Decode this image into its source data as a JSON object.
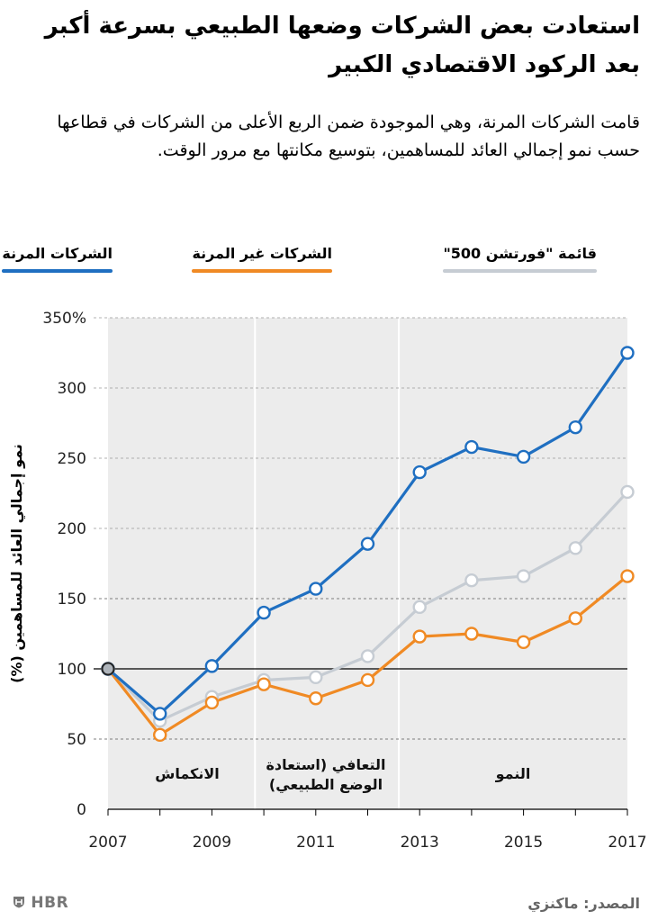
{
  "title": "استعادت بعض الشركات وضعها الطبيعي بسرعة أكبر بعد الركود الاقتصادي الكبير",
  "subtitle": "قامت الشركات المرنة، وهي الموجودة ضمن الربع الأعلى من الشركات في قطاعها حسب نمو إجمالي العائد للمساهمين، بتوسيع مكانتها مع مرور الوقت.",
  "source": "المصدر: ماكنزي",
  "logo": "HBR",
  "colors": {
    "resilient": "#1f6fc1",
    "nonresilient": "#f08a24",
    "fortune": "#c6ccd3",
    "shade": "#ececec"
  },
  "chart_data": {
    "type": "line",
    "title": "استعادت بعض الشركات وضعها الطبيعي بسرعة أكبر بعد الركود الاقتصادي الكبير",
    "ylabel": "نمو إجمالي العائد للمساهمين (%)",
    "xlabel": "",
    "x": [
      2007,
      2008,
      2009,
      2010,
      2011,
      2012,
      2013,
      2014,
      2015,
      2016,
      2017
    ],
    "xticks": [
      "2007",
      "2009",
      "2011",
      "2013",
      "2015",
      "2017"
    ],
    "yticks": [
      "0",
      "50",
      "100",
      "150",
      "200",
      "250",
      "300",
      "350%"
    ],
    "ylim": [
      0,
      350
    ],
    "grid": true,
    "legend": "top",
    "series": [
      {
        "name": "الشركات المرنة",
        "color": "#1f6fc1",
        "values": [
          100,
          68,
          102,
          140,
          157,
          189,
          240,
          258,
          251,
          272,
          325
        ]
      },
      {
        "name": "الشركات غير المرنة",
        "color": "#f08a24",
        "values": [
          100,
          53,
          76,
          89,
          79,
          92,
          123,
          125,
          119,
          136,
          166
        ]
      },
      {
        "name": "قائمة \"فورتشن 500\"",
        "color": "#c6ccd3",
        "values": [
          100,
          63,
          80,
          92,
          94,
          109,
          144,
          163,
          166,
          186,
          226
        ]
      }
    ],
    "phases": [
      {
        "label": "الانكماش",
        "from": 2007,
        "to": 2009.83
      },
      {
        "label": "التعافي (استعادة الوضع الطبيعي)",
        "from": 2009.83,
        "to": 2012.6
      },
      {
        "label": "النمو",
        "from": 2012.6,
        "to": 2017
      }
    ]
  }
}
